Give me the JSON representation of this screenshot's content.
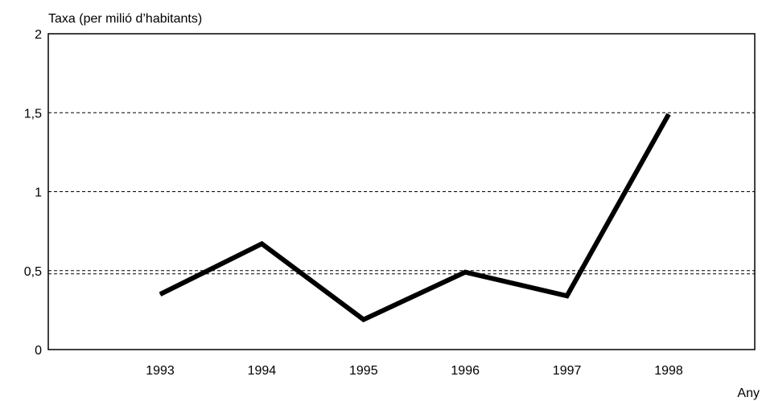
{
  "chart_data": {
    "type": "line",
    "ylabel": "Taxa (per milió d’habitants)",
    "xlabel": "Any",
    "x": [
      "1993",
      "1994",
      "1995",
      "1996",
      "1997",
      "1998"
    ],
    "series": [
      {
        "values": [
          0.35,
          0.67,
          0.19,
          0.49,
          0.34,
          1.49
        ]
      }
    ],
    "ylim": [
      0,
      2
    ],
    "yticks": [
      0,
      0.5,
      1,
      1.5,
      2
    ],
    "ytick_labels": [
      "0",
      "0,5",
      "1",
      "1,5",
      "2"
    ],
    "grid": "horizontal dashed",
    "legend": "none",
    "colors": {
      "line": "#000000",
      "grid": "#000000"
    }
  }
}
